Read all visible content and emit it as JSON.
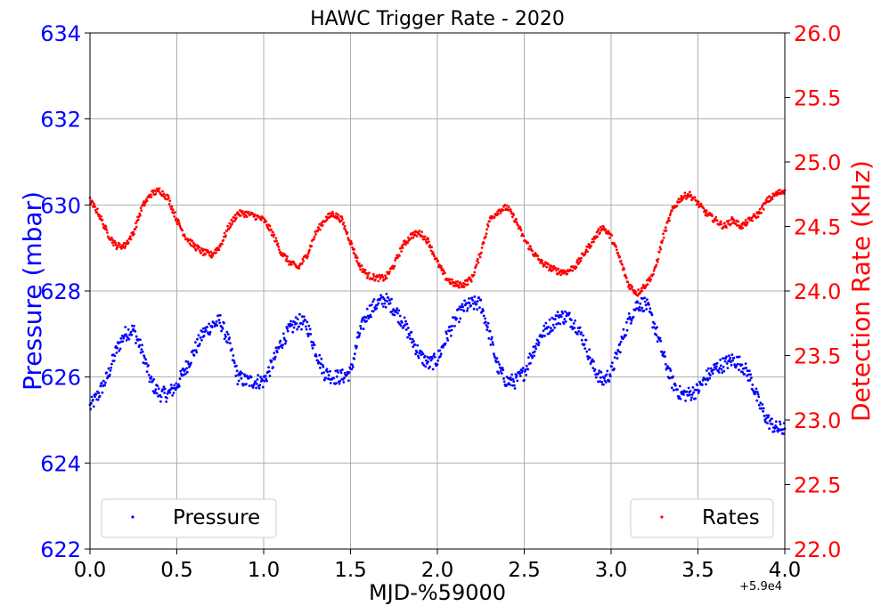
{
  "chart_data": {
    "type": "scatter",
    "title": "HAWC Trigger Rate - 2020",
    "xlabel": "MJD-%59000",
    "x_offset_label": "+5.9e4",
    "ylabel_left": "Pressure (mbar)",
    "ylabel_right": "Detection Rate (KHz)",
    "xlim": [
      0.0,
      4.0
    ],
    "ylim_left": [
      622,
      634
    ],
    "ylim_right": [
      22.0,
      26.0
    ],
    "x_ticks": [
      "0.0",
      "0.5",
      "1.0",
      "1.5",
      "2.0",
      "2.5",
      "3.0",
      "3.5",
      "4.0"
    ],
    "y_left_ticks": [
      "622",
      "624",
      "626",
      "628",
      "630",
      "632",
      "634"
    ],
    "y_right_ticks": [
      "22.0",
      "22.5",
      "23.0",
      "23.5",
      "24.0",
      "24.5",
      "25.0",
      "25.5",
      "26.0"
    ],
    "grid": true,
    "legend": [
      {
        "name": "Pressure",
        "color": "#0000ff",
        "location": "lower-left"
      },
      {
        "name": "Rates",
        "color": "#ff0000",
        "location": "lower-right"
      }
    ],
    "series": [
      {
        "name": "Pressure",
        "axis": "left",
        "color": "#0000ff",
        "x": [
          0.0,
          0.05,
          0.1,
          0.15,
          0.2,
          0.25,
          0.3,
          0.35,
          0.4,
          0.45,
          0.5,
          0.55,
          0.6,
          0.65,
          0.7,
          0.75,
          0.8,
          0.85,
          0.9,
          0.95,
          1.0,
          1.05,
          1.1,
          1.15,
          1.2,
          1.25,
          1.3,
          1.35,
          1.4,
          1.45,
          1.5,
          1.55,
          1.6,
          1.65,
          1.7,
          1.75,
          1.8,
          1.85,
          1.9,
          1.95,
          2.0,
          2.05,
          2.1,
          2.15,
          2.2,
          2.25,
          2.3,
          2.35,
          2.4,
          2.45,
          2.5,
          2.55,
          2.6,
          2.65,
          2.7,
          2.75,
          2.8,
          2.85,
          2.9,
          2.95,
          3.0,
          3.05,
          3.1,
          3.15,
          3.2,
          3.25,
          3.3,
          3.35,
          3.4,
          3.45,
          3.5,
          3.55,
          3.6,
          3.65,
          3.7,
          3.75,
          3.8,
          3.85,
          3.9,
          3.95,
          4.0
        ],
        "values": [
          625.3,
          625.6,
          626.0,
          626.6,
          627.0,
          627.1,
          626.6,
          625.9,
          625.6,
          625.6,
          625.8,
          626.2,
          626.6,
          627.0,
          627.2,
          627.3,
          626.8,
          626.0,
          625.9,
          625.9,
          625.9,
          626.3,
          626.8,
          627.1,
          627.3,
          627.2,
          626.6,
          626.1,
          626.0,
          626.0,
          626.1,
          627.0,
          627.5,
          627.7,
          627.8,
          627.6,
          627.3,
          626.9,
          626.5,
          626.3,
          626.4,
          626.9,
          627.3,
          627.6,
          627.7,
          627.7,
          627.0,
          626.2,
          625.9,
          625.9,
          626.1,
          626.6,
          627.0,
          627.2,
          627.4,
          627.4,
          627.2,
          626.8,
          626.2,
          625.9,
          626.1,
          626.7,
          627.3,
          627.7,
          627.7,
          627.2,
          626.5,
          625.9,
          625.6,
          625.6,
          625.7,
          626.0,
          626.2,
          626.3,
          626.4,
          626.3,
          626.0,
          625.4,
          625.0,
          624.8,
          624.8
        ]
      },
      {
        "name": "Rates",
        "axis": "right",
        "color": "#ff0000",
        "x": [
          0.0,
          0.05,
          0.1,
          0.15,
          0.2,
          0.25,
          0.3,
          0.35,
          0.4,
          0.45,
          0.5,
          0.55,
          0.6,
          0.65,
          0.7,
          0.75,
          0.8,
          0.85,
          0.9,
          0.95,
          1.0,
          1.05,
          1.1,
          1.15,
          1.2,
          1.25,
          1.3,
          1.35,
          1.4,
          1.45,
          1.5,
          1.55,
          1.6,
          1.65,
          1.7,
          1.75,
          1.8,
          1.85,
          1.9,
          1.95,
          2.0,
          2.05,
          2.1,
          2.15,
          2.2,
          2.25,
          2.3,
          2.35,
          2.4,
          2.45,
          2.5,
          2.55,
          2.6,
          2.65,
          2.7,
          2.75,
          2.8,
          2.85,
          2.9,
          2.95,
          3.0,
          3.05,
          3.1,
          3.15,
          3.2,
          3.25,
          3.3,
          3.35,
          3.4,
          3.45,
          3.5,
          3.55,
          3.6,
          3.65,
          3.7,
          3.75,
          3.8,
          3.85,
          3.9,
          3.95,
          4.0
        ],
        "values": [
          24.7,
          24.6,
          24.45,
          24.35,
          24.35,
          24.45,
          24.65,
          24.75,
          24.78,
          24.72,
          24.55,
          24.42,
          24.35,
          24.3,
          24.28,
          24.35,
          24.5,
          24.6,
          24.6,
          24.58,
          24.55,
          24.45,
          24.3,
          24.22,
          24.18,
          24.28,
          24.45,
          24.55,
          24.6,
          24.55,
          24.38,
          24.2,
          24.12,
          24.1,
          24.1,
          24.2,
          24.35,
          24.43,
          24.45,
          24.38,
          24.22,
          24.1,
          24.05,
          24.05,
          24.1,
          24.3,
          24.55,
          24.62,
          24.65,
          24.55,
          24.4,
          24.3,
          24.22,
          24.18,
          24.15,
          24.15,
          24.2,
          24.3,
          24.4,
          24.5,
          24.42,
          24.25,
          24.05,
          23.98,
          24.05,
          24.15,
          24.42,
          24.62,
          24.72,
          24.75,
          24.68,
          24.6,
          24.55,
          24.5,
          24.55,
          24.5,
          24.55,
          24.6,
          24.7,
          24.75,
          24.78
        ]
      }
    ]
  }
}
